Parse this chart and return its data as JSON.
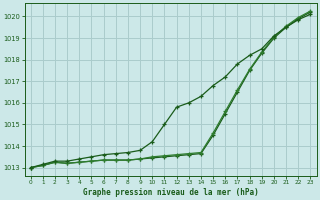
{
  "title": "Graphe pression niveau de la mer (hPa)",
  "bg_color": "#cce8e8",
  "grid_color": "#aacccc",
  "line_color1": "#1a5c1a",
  "line_color2": "#2e7d2e",
  "line_color3": "#1a5c1a",
  "xlim": [
    -0.5,
    23.5
  ],
  "ylim": [
    1012.6,
    1020.6
  ],
  "yticks": [
    1013,
    1014,
    1015,
    1016,
    1017,
    1018,
    1019,
    1020
  ],
  "xticks": [
    0,
    1,
    2,
    3,
    4,
    5,
    6,
    7,
    8,
    9,
    10,
    11,
    12,
    13,
    14,
    15,
    16,
    17,
    18,
    19,
    20,
    21,
    22,
    23
  ],
  "s1": [
    1013.0,
    1013.1,
    1013.25,
    1013.2,
    1013.25,
    1013.3,
    1013.35,
    1013.35,
    1013.35,
    1013.4,
    1013.45,
    1013.5,
    1013.55,
    1013.6,
    1013.65,
    1014.5,
    1015.5,
    1016.5,
    1017.5,
    1018.3,
    1019.0,
    1019.5,
    1019.9,
    1020.2
  ],
  "s2": [
    1013.0,
    1013.1,
    1013.25,
    1013.2,
    1013.25,
    1013.3,
    1013.35,
    1013.35,
    1013.35,
    1013.4,
    1013.5,
    1013.55,
    1013.6,
    1013.65,
    1013.7,
    1014.6,
    1015.6,
    1016.6,
    1017.55,
    1018.35,
    1019.05,
    1019.55,
    1019.95,
    1020.25
  ],
  "s3": [
    1013.0,
    1013.15,
    1013.3,
    1013.3,
    1013.4,
    1013.5,
    1013.6,
    1013.65,
    1013.7,
    1013.8,
    1014.2,
    1015.0,
    1015.8,
    1016.0,
    1016.3,
    1016.8,
    1017.2,
    1017.8,
    1018.2,
    1018.5,
    1019.1,
    1019.5,
    1019.85,
    1020.1
  ]
}
